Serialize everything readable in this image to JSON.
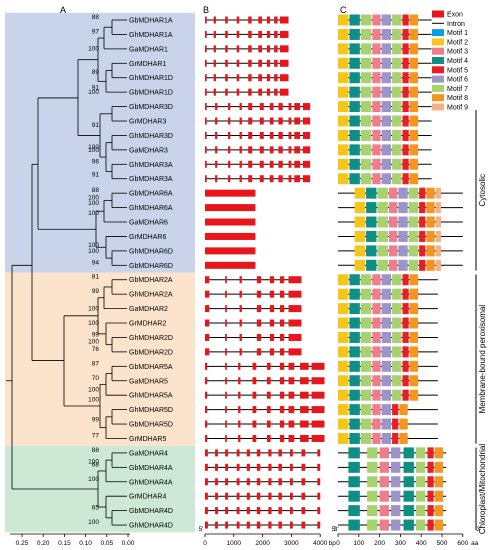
{
  "panel_labels": [
    "A",
    "B",
    "C"
  ],
  "genes": [
    "GbMDHAR1A",
    "GhMDHAR1A",
    "GaMDHAR1",
    "GrMDHAR1",
    "GhMDHAR1D",
    "GbMDHAR1D",
    "GbMDHAR3D",
    "GrMDHAR3",
    "GhMDHAR3D",
    "GaMDHAR3",
    "GhMDHAR3A",
    "GbMDHAR3A",
    "GbMDHAR6A",
    "GhMDHAR6A",
    "GaMDHAR6",
    "GrMDHAR6",
    "GhMDHAR6D",
    "GbMDHAR6D",
    "GbMDHAR2A",
    "GhMDHAR2A",
    "GaMDHAR2",
    "GrMDHAR2",
    "GhMDHAR2D",
    "GbMDHAR2D",
    "GbMDHAR5A",
    "GaMDHAR5",
    "GhMDHAR5A",
    "GhMDHAR5D",
    "GbMDHAR5D",
    "GrMDHAR5",
    "GaMDHAR4",
    "GbMDHAR4A",
    "GhMDHAR4A",
    "GrMDHAR4",
    "GbMDHAR4D",
    "GhMDHAR4D"
  ],
  "bootstrap": [
    {
      "value": "88",
      "row": 0
    },
    {
      "value": "97",
      "row": 1
    },
    {
      "value": "100",
      "row": 2.2
    },
    {
      "value": "89",
      "row": 3.8
    },
    {
      "value": "91",
      "row": 4.9
    },
    {
      "value": "100",
      "row": 5.2
    },
    {
      "value": "91",
      "row": 7.5
    },
    {
      "value": "100",
      "row": 9
    },
    {
      "value": "96",
      "row": 10
    },
    {
      "value": "91",
      "row": 10.9
    },
    {
      "value": "100",
      "row": 9.2
    },
    {
      "value": "88",
      "row": 12
    },
    {
      "value": "100",
      "row": 12.9
    },
    {
      "value": "100",
      "row": 13.6
    },
    {
      "value": "100",
      "row": 15.8
    },
    {
      "value": "94",
      "row": 17
    },
    {
      "value": "100",
      "row": 16.2
    },
    {
      "value": "81",
      "row": 18
    },
    {
      "value": "99",
      "row": 19
    },
    {
      "value": "100",
      "row": 20.2
    },
    {
      "value": "99",
      "row": 22
    },
    {
      "value": "76",
      "row": 23
    },
    {
      "value": "100",
      "row": 22.5
    },
    {
      "value": "87",
      "row": 24
    },
    {
      "value": "70",
      "row": 25
    },
    {
      "value": "100",
      "row": 26.5
    },
    {
      "value": "99",
      "row": 27.9
    },
    {
      "value": "77",
      "row": 29
    },
    {
      "value": "100",
      "row": 25.8
    },
    {
      "value": "88",
      "row": 30
    },
    {
      "value": "68",
      "row": 31
    },
    {
      "value": "100",
      "row": 32
    },
    {
      "value": "65",
      "row": 34
    },
    {
      "value": "100",
      "row": 35
    },
    {
      "value": "100",
      "row": 30.8
    },
    {
      "value": "100",
      "row": 21.2
    },
    {
      "value": "100",
      "row": 12.5
    }
  ],
  "tree_axis": {
    "ticks": [
      "0.25",
      "0.20",
      "0.15",
      "0.10",
      "0.05",
      "0.00"
    ]
  },
  "gene_axis": {
    "ticks": [
      "0",
      "1000",
      "2000",
      "3000",
      "4000"
    ],
    "unit": "bp",
    "end5": "5'",
    "end3": "3'"
  },
  "motif_axis": {
    "ticks": [
      "0",
      "100",
      "200",
      "300",
      "400",
      "500",
      "600"
    ],
    "unit": "aa",
    "end5": "5'",
    "end3": "3'"
  },
  "legend": [
    {
      "label": "Exon",
      "color": "#e8151b",
      "kind": "box"
    },
    {
      "label": "Intron",
      "color": "#000000",
      "kind": "line"
    },
    {
      "label": "Motif 1",
      "color": "#00a0e0"
    },
    {
      "label": "Motif 2",
      "color": "#f5c518"
    },
    {
      "label": "Motif 3",
      "color": "#f07c8e"
    },
    {
      "label": "Motif 4",
      "color": "#0e8f85"
    },
    {
      "label": "Motif 5",
      "color": "#ea1c24"
    },
    {
      "label": "Motif 6",
      "color": "#9b95c8"
    },
    {
      "label": "Motif 7",
      "color": "#a8d26e"
    },
    {
      "label": "Motif 8",
      "color": "#f7941d"
    },
    {
      "label": "Motif 9",
      "color": "#f4b183"
    }
  ],
  "groups": [
    {
      "label": "Cytosolic",
      "rows": [
        0,
        17
      ],
      "bg": "#c9d4ea"
    },
    {
      "label": "Membrane-bound peroxisomal",
      "rows": [
        18,
        29
      ],
      "bg": "#fce3cc"
    },
    {
      "label": "Chloroplast/Mitochondrial",
      "rows": [
        30,
        35
      ],
      "bg": "#cde9d5"
    }
  ]
}
